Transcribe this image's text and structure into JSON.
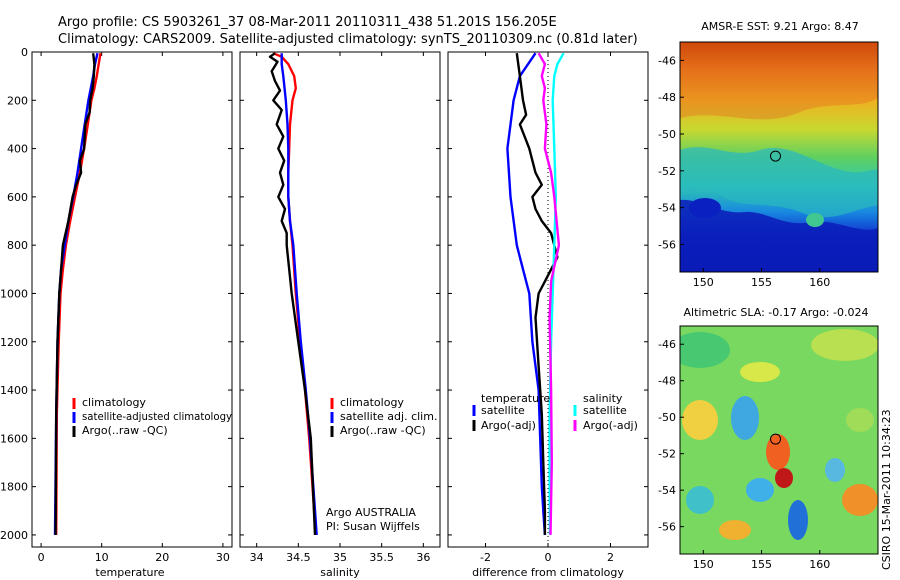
{
  "header": {
    "title_line1": "Argo profile: CS 5903261_37 08-Mar-2011 20110311_438 51.201S 156.205E",
    "title_line2": "Climatology: CARS2009. Satellite-adjusted climatology: synTS_20110309.nc (0.81d later)"
  },
  "side_note": "CSIRO 15-Mar-2011 10:34:23",
  "colors": {
    "climatology": "#ff0000",
    "satellite": "#0000ff",
    "argo": "#000000",
    "salinity_satellite": "#00ffff",
    "salinity_adj": "#ff00ff"
  },
  "chart_data": [
    {
      "type": "line",
      "xlabel": "temperature",
      "ylim": [
        2050,
        0
      ],
      "xlim": [
        -1.5,
        31.5
      ],
      "xticks": [
        0,
        10,
        20,
        30
      ],
      "yticks": [
        0,
        200,
        400,
        600,
        800,
        1000,
        1200,
        1400,
        1600,
        1800,
        2000
      ],
      "series": [
        {
          "name": "climatology",
          "color": "#ff0000",
          "x": [
            9.8,
            9.5,
            9.2,
            8.8,
            8.3,
            7.7,
            7.1,
            6.4,
            5.6,
            4.8,
            4.1,
            3.6,
            3.2,
            2.9,
            2.6,
            2.5
          ],
          "y": [
            5,
            50,
            100,
            150,
            200,
            300,
            400,
            500,
            600,
            700,
            800,
            900,
            1000,
            1200,
            1500,
            2000
          ]
        },
        {
          "name": "satellite-adjusted climatology",
          "color": "#0000ff",
          "x": [
            9.3,
            8.9,
            8.6,
            8.2,
            7.8,
            7.2,
            6.6,
            6.0,
            5.3,
            4.5,
            3.9,
            3.3,
            3.0,
            2.7,
            2.5,
            2.3
          ],
          "y": [
            5,
            50,
            100,
            150,
            200,
            300,
            400,
            500,
            600,
            700,
            800,
            900,
            1000,
            1200,
            1500,
            2000
          ]
        },
        {
          "name": "Argo(..raw -QC)",
          "color": "#000000",
          "x": [
            8.6,
            8.8,
            8.7,
            8.5,
            8.1,
            8.0,
            7.3,
            7.1,
            6.4,
            6.6,
            5.8,
            5.2,
            4.5,
            3.6,
            3.3,
            3.0,
            2.7,
            2.5,
            2.4
          ],
          "y": [
            5,
            50,
            100,
            150,
            200,
            250,
            300,
            400,
            450,
            500,
            550,
            600,
            700,
            800,
            900,
            1000,
            1200,
            1500,
            2000
          ]
        }
      ],
      "legend": {
        "position": "lower-right",
        "entries": [
          "climatology",
          "satellite-adjusted climatology",
          "Argo(..raw -QC)"
        ]
      }
    },
    {
      "type": "line",
      "xlabel": "salinity",
      "ylim": [
        2050,
        0
      ],
      "xlim": [
        33.8,
        36.2
      ],
      "xticks": [
        34,
        34.5,
        35,
        35.5,
        36
      ],
      "xticklabels": [
        "34",
        "34.5",
        "35",
        "35.5",
        "36"
      ],
      "series": [
        {
          "name": "climatology",
          "color": "#ff0000",
          "x": [
            34.2,
            34.3,
            34.38,
            34.45,
            34.47,
            34.43,
            34.4,
            34.39,
            34.38,
            34.38,
            34.4,
            34.43,
            34.47,
            34.52,
            34.58,
            34.63,
            34.67,
            34.71
          ],
          "y": [
            5,
            20,
            50,
            100,
            150,
            200,
            300,
            400,
            500,
            600,
            700,
            800,
            1000,
            1200,
            1400,
            1600,
            1800,
            2000
          ]
        },
        {
          "name": "satellite adj. clim.",
          "color": "#0000ff",
          "x": [
            34.3,
            34.3,
            34.32,
            34.35,
            34.37,
            34.38,
            34.38,
            34.38,
            34.4,
            34.44,
            34.48,
            34.53,
            34.59,
            34.64,
            34.68,
            34.72
          ],
          "y": [
            5,
            50,
            100,
            200,
            300,
            400,
            500,
            600,
            700,
            800,
            1000,
            1200,
            1400,
            1600,
            1800,
            2000
          ]
        },
        {
          "name": "Argo(..raw -QC)",
          "color": "#000000",
          "x": [
            34.22,
            34.16,
            34.25,
            34.18,
            34.22,
            34.28,
            34.2,
            34.3,
            34.24,
            34.32,
            34.26,
            34.33,
            34.28,
            34.32,
            34.26,
            34.34,
            34.3,
            34.36,
            34.36,
            34.42,
            34.5,
            34.58,
            34.65,
            34.7
          ],
          "y": [
            5,
            20,
            40,
            80,
            120,
            160,
            200,
            240,
            300,
            350,
            400,
            450,
            500,
            550,
            600,
            650,
            700,
            750,
            800,
            1000,
            1200,
            1400,
            1600,
            2000
          ]
        }
      ],
      "legend": {
        "position": "lower-right",
        "entries": [
          "climatology",
          "satellite adj. clim.",
          "Argo(..raw -QC)"
        ]
      },
      "annotation": [
        "Argo AUSTRALIA",
        "PI: Susan Wijffels"
      ]
    },
    {
      "type": "line",
      "xlabel": "difference from climatology",
      "ylim": [
        2050,
        0
      ],
      "xlim": [
        -3.2,
        3.2
      ],
      "xticks": [
        -2,
        0,
        2
      ],
      "series": [
        {
          "name": "temperature satellite",
          "color": "#0000ff",
          "x": [
            -0.4,
            -0.9,
            -1.1,
            -1.3,
            -1.2,
            -1.0,
            -0.8,
            -0.6,
            -0.5,
            -0.3,
            -0.25,
            -0.2,
            -0.15,
            -0.1
          ],
          "y": [
            5,
            100,
            200,
            400,
            600,
            800,
            900,
            1000,
            1200,
            1400,
            1600,
            1800,
            1900,
            2000
          ]
        },
        {
          "name": "temperature Argo(-adj)",
          "color": "#000000",
          "x": [
            -1.0,
            -0.9,
            -0.8,
            -0.7,
            -0.9,
            -0.6,
            -0.5,
            -0.4,
            -0.2,
            -0.5,
            -0.4,
            -0.2,
            0.1,
            0.3,
            -0.1,
            -0.3,
            -0.4,
            -0.3,
            -0.2,
            -0.15,
            -0.1,
            -0.1
          ],
          "y": [
            5,
            100,
            200,
            260,
            300,
            400,
            450,
            500,
            550,
            600,
            650,
            700,
            750,
            850,
            950,
            1000,
            1100,
            1300,
            1500,
            1700,
            1900,
            2000
          ]
        },
        {
          "name": "salinity satellite",
          "color": "#00ffff",
          "x": [
            0.5,
            0.3,
            0.2,
            0.15,
            0.2,
            0.25,
            0.2,
            0.15,
            0.1,
            0.05,
            0.05,
            0.06
          ],
          "y": [
            5,
            50,
            100,
            200,
            400,
            600,
            800,
            1000,
            1200,
            1500,
            1800,
            2000
          ]
        },
        {
          "name": "salinity Argo(-adj)",
          "color": "#ff00ff",
          "x": [
            -0.3,
            -0.1,
            -0.2,
            -0.1,
            -0.15,
            -0.05,
            -0.1,
            0.1,
            0.2,
            0.35,
            0.1,
            0.05,
            0.1,
            0.12,
            0.08
          ],
          "y": [
            5,
            50,
            100,
            150,
            200,
            300,
            400,
            500,
            600,
            800,
            950,
            1100,
            1400,
            1700,
            2000
          ]
        }
      ],
      "legend": {
        "left_header": "temperature",
        "right_header": "salinity",
        "entries": [
          {
            "label": "satellite",
            "color": "#0000ff"
          },
          {
            "label": "Argo(-adj)",
            "color": "#000000"
          },
          {
            "label": "satellite",
            "color": "#00ffff"
          },
          {
            "label": "Argo(-adj)",
            "color": "#ff00ff"
          }
        ]
      }
    },
    {
      "type": "heatmap",
      "title": "AMSR-E SST: 9.21  Argo: 8.47",
      "xlim": [
        148,
        165
      ],
      "ylim": [
        -57.5,
        -45
      ],
      "xticks": [
        150,
        155,
        160
      ],
      "yticks": [
        -46,
        -48,
        -50,
        -52,
        -54,
        -56
      ],
      "profile_marker": {
        "lon": 156.2,
        "lat": -51.2
      }
    },
    {
      "type": "heatmap",
      "title": "Altimetric SLA: -0.17  Argo: -0.024",
      "xlim": [
        148,
        165
      ],
      "ylim": [
        -57.5,
        -45
      ],
      "xticks": [
        150,
        155,
        160
      ],
      "yticks": [
        -46,
        -48,
        -50,
        -52,
        -54,
        -56
      ],
      "profile_marker": {
        "lon": 156.2,
        "lat": -51.2
      }
    }
  ]
}
